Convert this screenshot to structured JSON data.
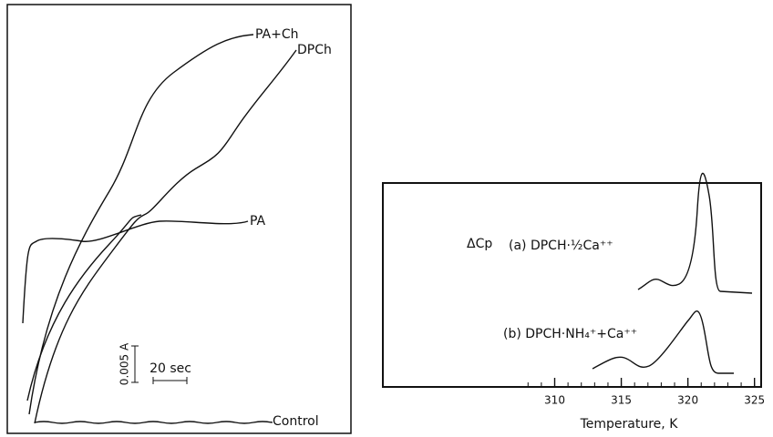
{
  "left_panel": {
    "curve_labels": [
      "PA+Ch",
      "DPCh",
      "PA",
      "Control"
    ],
    "scale_y_label": "0.005 A",
    "scale_x_label": "20 sec"
  },
  "chart_data": {
    "type": "line",
    "xlabel": "Temperature,  K",
    "ylabel": "ΔCp",
    "xlim": [
      297.1,
      325.5
    ],
    "xticks": [
      310,
      315,
      320,
      325
    ],
    "curve_labels": [
      "(a)  DPCH·½Ca⁺⁺",
      "(b) DPCH·NH₄⁺+Ca⁺⁺"
    ]
  }
}
